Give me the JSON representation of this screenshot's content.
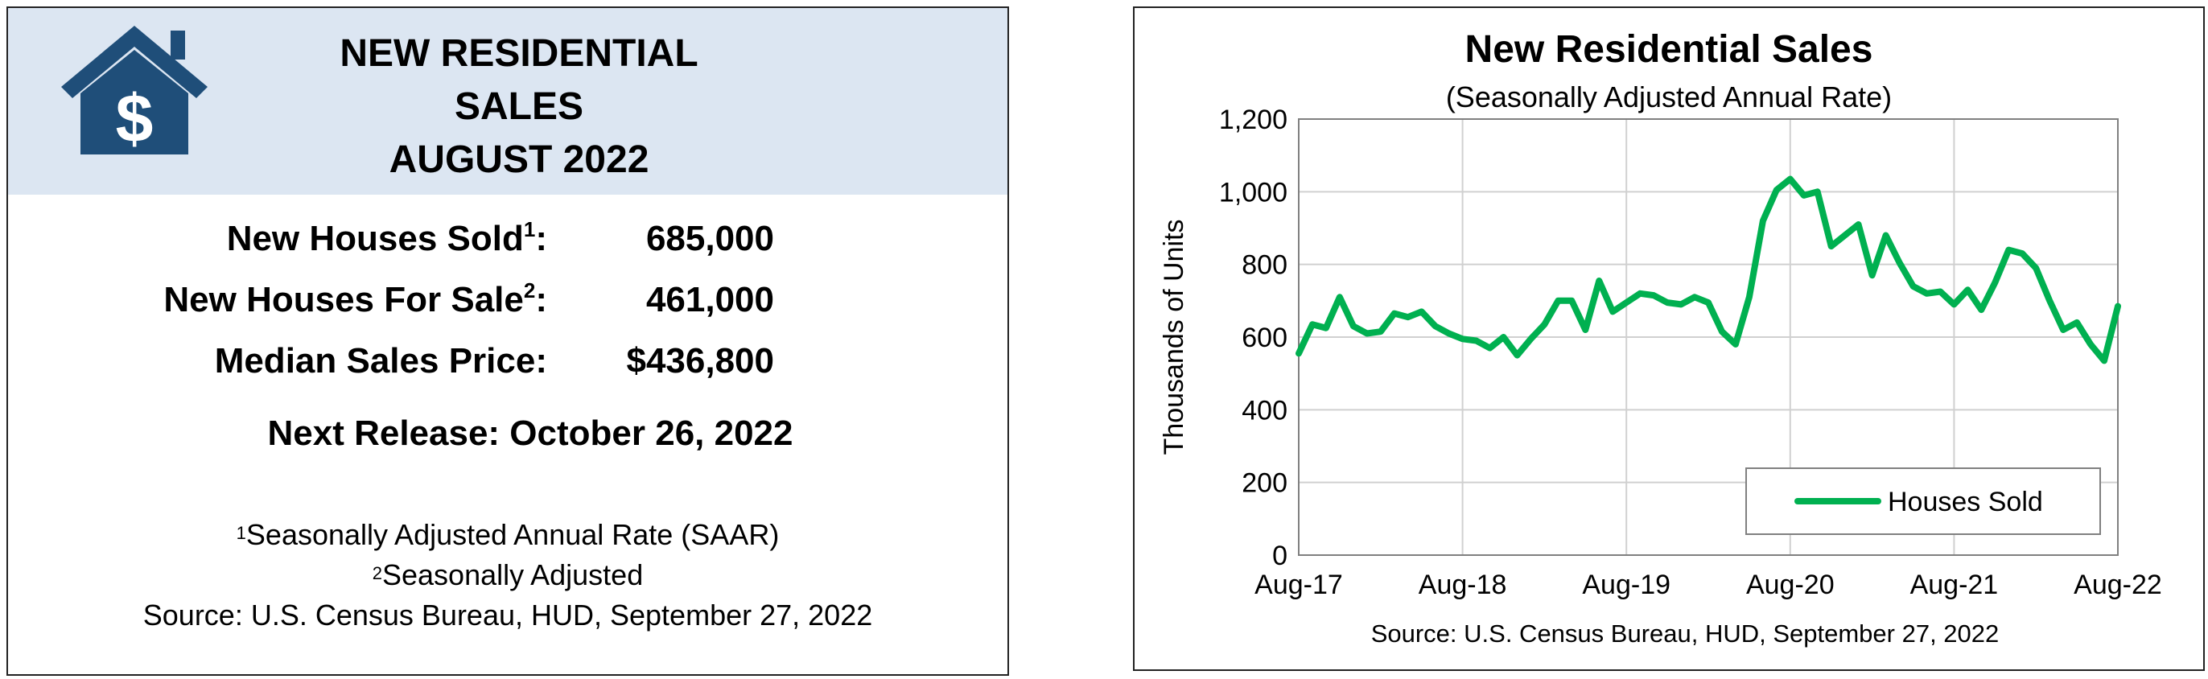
{
  "summary": {
    "title_lines": [
      "NEW RESIDENTIAL",
      "SALES",
      "AUGUST 2022"
    ],
    "stats": [
      {
        "label": "New Houses Sold",
        "sup": "1",
        "suffix": ":",
        "value": "685,000"
      },
      {
        "label": "New Houses For Sale",
        "sup": "2",
        "suffix": ":",
        "value": "461,000"
      },
      {
        "label": "Median Sales Price",
        "sup": "",
        "suffix": ":",
        "value": "$436,800"
      }
    ],
    "next_release": "Next Release:  October 26, 2022",
    "footnotes": [
      {
        "sup": "1",
        "text": "Seasonally Adjusted Annual Rate (SAAR)"
      },
      {
        "sup": "2",
        "text": "Seasonally Adjusted"
      },
      {
        "sup": "",
        "text": "Source:  U.S. Census Bureau, HUD, September 27, 2022"
      }
    ],
    "icon": "house-dollar-icon"
  },
  "colors": {
    "header_bg": "#dce6f2",
    "icon_color": "#1f4e79",
    "line_color": "#00b050"
  },
  "chart_data": {
    "type": "line",
    "title": "New Residential Sales",
    "subtitle": "(Seasonally Adjusted Annual Rate)",
    "ylabel": "Thousands of Units",
    "xlabel": "",
    "ylim": [
      0,
      1200
    ],
    "yticks": [
      "0",
      "200",
      "400",
      "600",
      "800",
      "1,000",
      "1,200"
    ],
    "ytick_values": [
      0,
      200,
      400,
      600,
      800,
      1000,
      1200
    ],
    "xtick_labels": [
      "Aug-17",
      "Aug-18",
      "Aug-19",
      "Aug-20",
      "Aug-21",
      "Aug-22"
    ],
    "grid": true,
    "legend_position": "bottom-right",
    "series": [
      {
        "name": "Houses Sold",
        "values": [
          555,
          635,
          625,
          710,
          630,
          610,
          615,
          665,
          655,
          670,
          630,
          610,
          595,
          590,
          570,
          600,
          550,
          595,
          635,
          700,
          700,
          620,
          755,
          670,
          695,
          720,
          715,
          695,
          690,
          710,
          695,
          615,
          580,
          710,
          920,
          1005,
          1035,
          990,
          1000,
          850,
          880,
          910,
          770,
          880,
          805,
          740,
          720,
          725,
          690,
          730,
          675,
          750,
          840,
          830,
          790,
          700,
          620,
          640,
          580,
          535,
          685
        ]
      }
    ],
    "source": "Source:  U.S. Census Bureau, HUD, September 27, 2022"
  }
}
